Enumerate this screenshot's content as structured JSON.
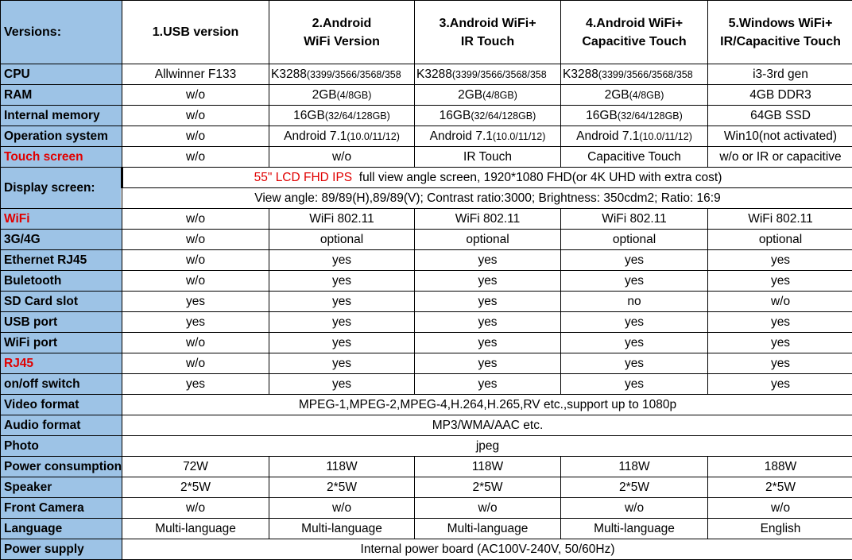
{
  "header": {
    "label": "Versions:",
    "columns": [
      "1.USB version",
      "2.Android\nWiFi Version",
      "3.Android WiFi+\nIR Touch",
      "4.Android WiFi+\nCapacitive Touch",
      "5.Windows WiFi+\nIR/Capacitive Touch"
    ]
  },
  "colors": {
    "label_bg": "#9dc3e6",
    "highlight": "#e00000"
  },
  "rows": [
    {
      "label": "CPU",
      "cells": [
        {
          "t": "Allwinner F133"
        },
        {
          "t": "K3288",
          "s": "(3399/3566/3568/358"
        },
        {
          "t": "K3288",
          "s": "(3399/3566/3568/358"
        },
        {
          "t": "K3288",
          "s": "(3399/3566/3568/358"
        },
        {
          "t": "i3-3rd gen"
        }
      ]
    },
    {
      "label": "RAM",
      "cells": [
        {
          "t": "w/o"
        },
        {
          "t": "2GB",
          "s": "(4/8GB)"
        },
        {
          "t": "2GB",
          "s": "(4/8GB)"
        },
        {
          "t": "2GB",
          "s": "(4/8GB)"
        },
        {
          "t": "4GB DDR3"
        }
      ]
    },
    {
      "label": "Internal memory",
      "cells": [
        {
          "t": "w/o"
        },
        {
          "t": "16GB",
          "s": "(32/64/128GB)"
        },
        {
          "t": "16GB",
          "s": "(32/64/128GB)"
        },
        {
          "t": "16GB",
          "s": "(32/64/128GB)"
        },
        {
          "t": "64GB SSD"
        }
      ]
    },
    {
      "label": "Operation system",
      "cells": [
        {
          "t": "w/o"
        },
        {
          "t": "Android 7.1",
          "s": "(10.0/11/12)"
        },
        {
          "t": "Android 7.1",
          "s": "(10.0/11/12)"
        },
        {
          "t": "Android 7.1",
          "s": "(10.0/11/12)"
        },
        {
          "t": "Win10(not activated)"
        }
      ]
    },
    {
      "label": "Touch screen",
      "red": true,
      "cells": [
        {
          "t": "w/o"
        },
        {
          "t": "w/o"
        },
        {
          "t": "IR Touch"
        },
        {
          "t": "Capacitive Touch"
        },
        {
          "t": "w/o or IR or capacitive"
        }
      ]
    },
    {
      "label": "Display screen:",
      "display": true,
      "line1_red": "55\" LCD FHD IPS",
      "line1": "  full view angle screen, 1920*1080 FHD(or 4K UHD with extra cost)",
      "line2": "View angle: 89/89(H),89/89(V); Contrast ratio:3000; Brightness: 350cdm2; Ratio: 16:9"
    },
    {
      "label": "WiFi",
      "red": true,
      "cells": [
        {
          "t": "w/o"
        },
        {
          "t": "WiFi 802.11"
        },
        {
          "t": "WiFi 802.11"
        },
        {
          "t": "WiFi 802.11"
        },
        {
          "t": "WiFi 802.11"
        }
      ]
    },
    {
      "label": "3G/4G",
      "cells": [
        {
          "t": "w/o"
        },
        {
          "t": "optional"
        },
        {
          "t": "optional"
        },
        {
          "t": "optional"
        },
        {
          "t": "optional"
        }
      ]
    },
    {
      "label": "Ethernet RJ45",
      "cells": [
        {
          "t": "w/o"
        },
        {
          "t": "yes"
        },
        {
          "t": "yes"
        },
        {
          "t": "yes"
        },
        {
          "t": "yes"
        }
      ]
    },
    {
      "label": "Buletooth",
      "cells": [
        {
          "t": "w/o"
        },
        {
          "t": "yes"
        },
        {
          "t": "yes"
        },
        {
          "t": "yes"
        },
        {
          "t": "yes"
        }
      ]
    },
    {
      "label": "SD Card slot",
      "cells": [
        {
          "t": "yes"
        },
        {
          "t": "yes"
        },
        {
          "t": "yes"
        },
        {
          "t": "no"
        },
        {
          "t": "w/o"
        }
      ]
    },
    {
      "label": "USB port",
      "cells": [
        {
          "t": "yes"
        },
        {
          "t": "yes"
        },
        {
          "t": "yes"
        },
        {
          "t": "yes"
        },
        {
          "t": "yes"
        }
      ]
    },
    {
      "label": "WiFi port",
      "cells": [
        {
          "t": "w/o"
        },
        {
          "t": "yes"
        },
        {
          "t": "yes"
        },
        {
          "t": "yes"
        },
        {
          "t": "yes"
        }
      ]
    },
    {
      "label": "RJ45",
      "red": true,
      "cells": [
        {
          "t": "w/o"
        },
        {
          "t": "yes"
        },
        {
          "t": "yes"
        },
        {
          "t": "yes"
        },
        {
          "t": "yes"
        }
      ]
    },
    {
      "label": "on/off switch",
      "cells": [
        {
          "t": "yes"
        },
        {
          "t": "yes"
        },
        {
          "t": "yes"
        },
        {
          "t": "yes"
        },
        {
          "t": "yes"
        }
      ]
    },
    {
      "label": "Video format",
      "span": "MPEG-1,MPEG-2,MPEG-4,H.264,H.265,RV etc.,support up to 1080p"
    },
    {
      "label": "Audio format",
      "span": "MP3/WMA/AAC etc."
    },
    {
      "label": "Photo",
      "span": "jpeg"
    },
    {
      "label": "Power consumption",
      "cells": [
        {
          "t": "72W"
        },
        {
          "t": "118W"
        },
        {
          "t": "118W"
        },
        {
          "t": "118W"
        },
        {
          "t": "188W"
        }
      ]
    },
    {
      "label": "Speaker",
      "cells": [
        {
          "t": "2*5W"
        },
        {
          "t": "2*5W"
        },
        {
          "t": "2*5W"
        },
        {
          "t": "2*5W"
        },
        {
          "t": "2*5W"
        }
      ]
    },
    {
      "label": "Front Camera",
      "cells": [
        {
          "t": "w/o"
        },
        {
          "t": "w/o"
        },
        {
          "t": "w/o"
        },
        {
          "t": "w/o"
        },
        {
          "t": "w/o"
        }
      ]
    },
    {
      "label": "Language",
      "cells": [
        {
          "t": "Multi-language"
        },
        {
          "t": "Multi-language"
        },
        {
          "t": "Multi-language"
        },
        {
          "t": "Multi-language"
        },
        {
          "t": "English"
        }
      ]
    },
    {
      "label": "Power supply",
      "span": "Internal power board (AC100V-240V, 50/60Hz)"
    }
  ]
}
